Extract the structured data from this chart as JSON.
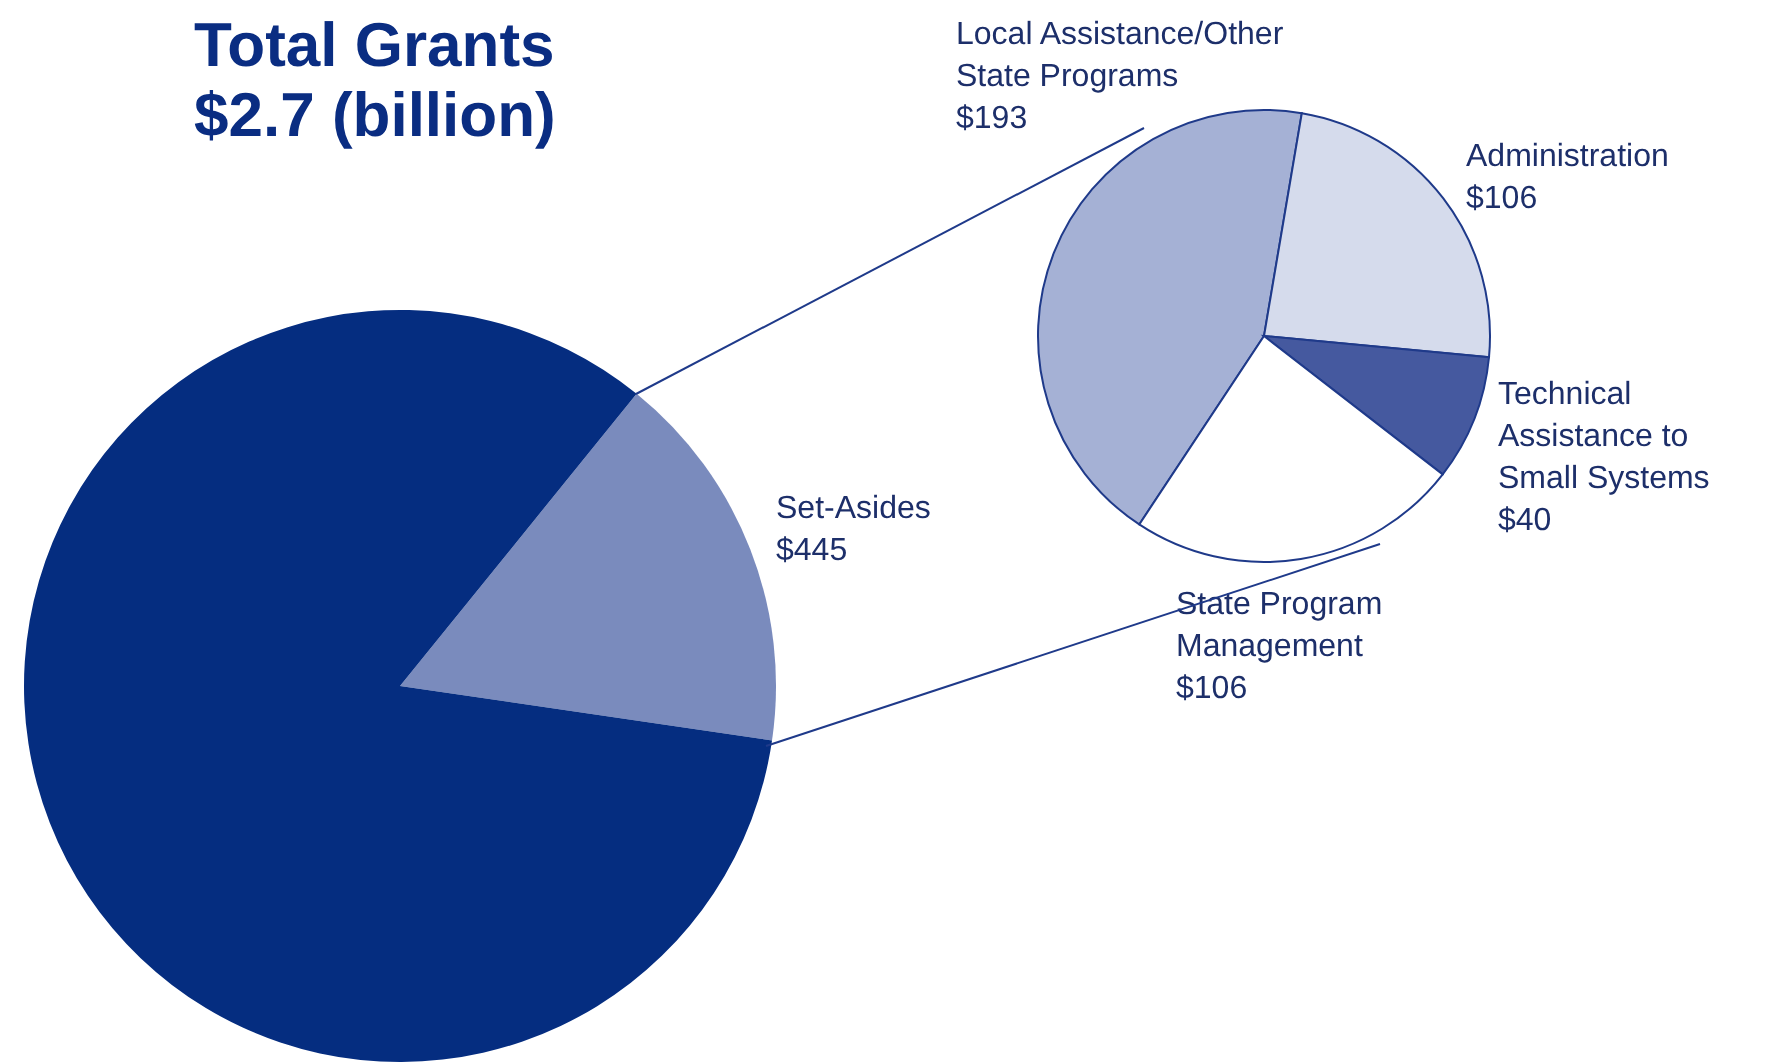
{
  "chart_data": [
    {
      "type": "pie",
      "title": "Total Grants",
      "subtitle": "$2.7 (billion)",
      "categories": [
        "Set-Asides",
        null
      ],
      "values": [
        445,
        2255
      ],
      "colors": [
        "#7a8bbd",
        "#052d80"
      ],
      "value_labels": [
        "$445",
        null
      ]
    },
    {
      "type": "pie",
      "categories": [
        "Local Assistance/Other State Programs",
        "Administration",
        "Technical Assistance to Small Systems",
        "State Program Management"
      ],
      "values": [
        193,
        106,
        40,
        106
      ],
      "colors": [
        "#a5b1d5",
        "#d5dbec",
        "#45599f",
        "#ffffff"
      ],
      "value_labels": [
        "$193",
        "$106",
        "$40",
        "$106"
      ]
    }
  ]
}
